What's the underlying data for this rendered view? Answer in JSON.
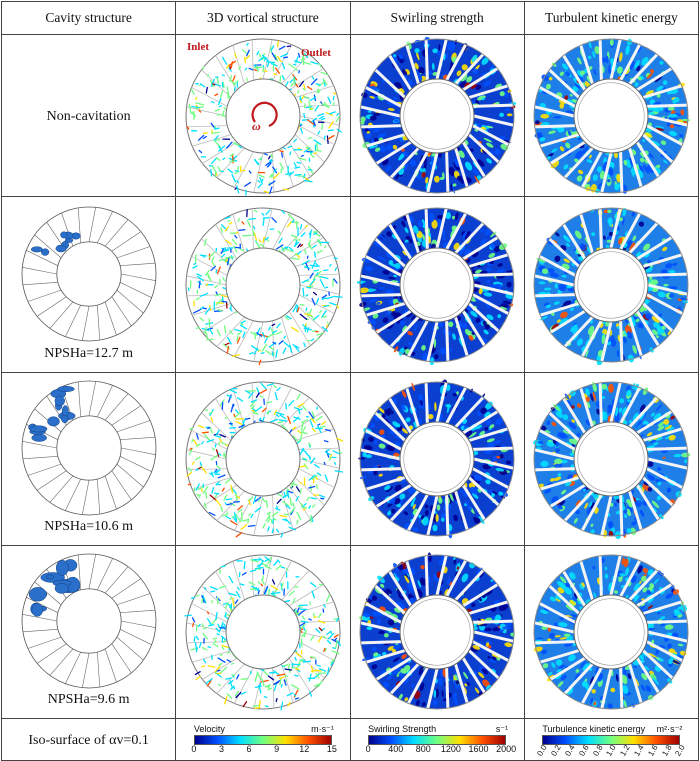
{
  "headers": [
    "Cavity structure",
    "3D vortical structure",
    "Swirling strength",
    "Turbulent kinetic energy"
  ],
  "rows": [
    {
      "label": "Non-cavitation",
      "caption": ""
    },
    {
      "label": "",
      "caption": "NPSHa=12.7 m"
    },
    {
      "label": "",
      "caption": "NPSHa=10.6 m"
    },
    {
      "label": "",
      "caption": "NPSHa=9.6 m"
    }
  ],
  "annotations": {
    "inlet": "Inlet",
    "outlet": "Outlet",
    "omega": "ω"
  },
  "footer_label": "Iso-surface of αv=0.1",
  "colorbars": [
    {
      "title": "Velocity",
      "unit": "m·s⁻¹",
      "ticks": [
        "0",
        "3",
        "6",
        "9",
        "12",
        "15"
      ],
      "rotated": false
    },
    {
      "title": "Swirling Strength",
      "unit": "s⁻¹",
      "ticks": [
        "0",
        "400",
        "800",
        "1200",
        "1600",
        "2000"
      ],
      "rotated": false
    },
    {
      "title": "Turbulence kinetic energy",
      "unit": "m²·s⁻²",
      "ticks": [
        "0.0",
        "0.2",
        "0.4",
        "0.6",
        "0.8",
        "1.0",
        "1.2",
        "1.4",
        "1.6",
        "1.8",
        "2.0"
      ],
      "rotated": true
    }
  ],
  "colors": {
    "jet": [
      "#00008f",
      "#0050ff",
      "#00dfff",
      "#70ff80",
      "#ffe000",
      "#ff5000",
      "#a00000"
    ],
    "cavity": "#2a6fc9",
    "annotation": "#c0181c"
  }
}
